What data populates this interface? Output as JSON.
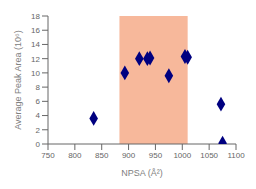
{
  "chart_data": {
    "type": "scatter",
    "title": "",
    "xlabel": "NPSA (Å²)",
    "ylabel": "Average Peak Area (10⁶)",
    "xlim": [
      750,
      1100
    ],
    "ylim": [
      0,
      18
    ],
    "xticks": [
      750,
      800,
      850,
      900,
      950,
      1000,
      1050,
      1100
    ],
    "yticks": [
      0,
      2,
      4,
      6,
      8,
      10,
      12,
      14,
      16,
      18
    ],
    "x": [
      835,
      893,
      920,
      935,
      940,
      975,
      1005,
      1010,
      1072,
      1075
    ],
    "values": [
      3.6,
      10.0,
      12.0,
      12.0,
      12.1,
      9.6,
      12.3,
      12.2,
      5.6,
      0.1
    ],
    "color": "#000080",
    "marker": "diamond",
    "spans": [
      {
        "x": [
          883,
          1010
        ],
        "color": "#F4A07A"
      }
    ],
    "grid": false
  }
}
